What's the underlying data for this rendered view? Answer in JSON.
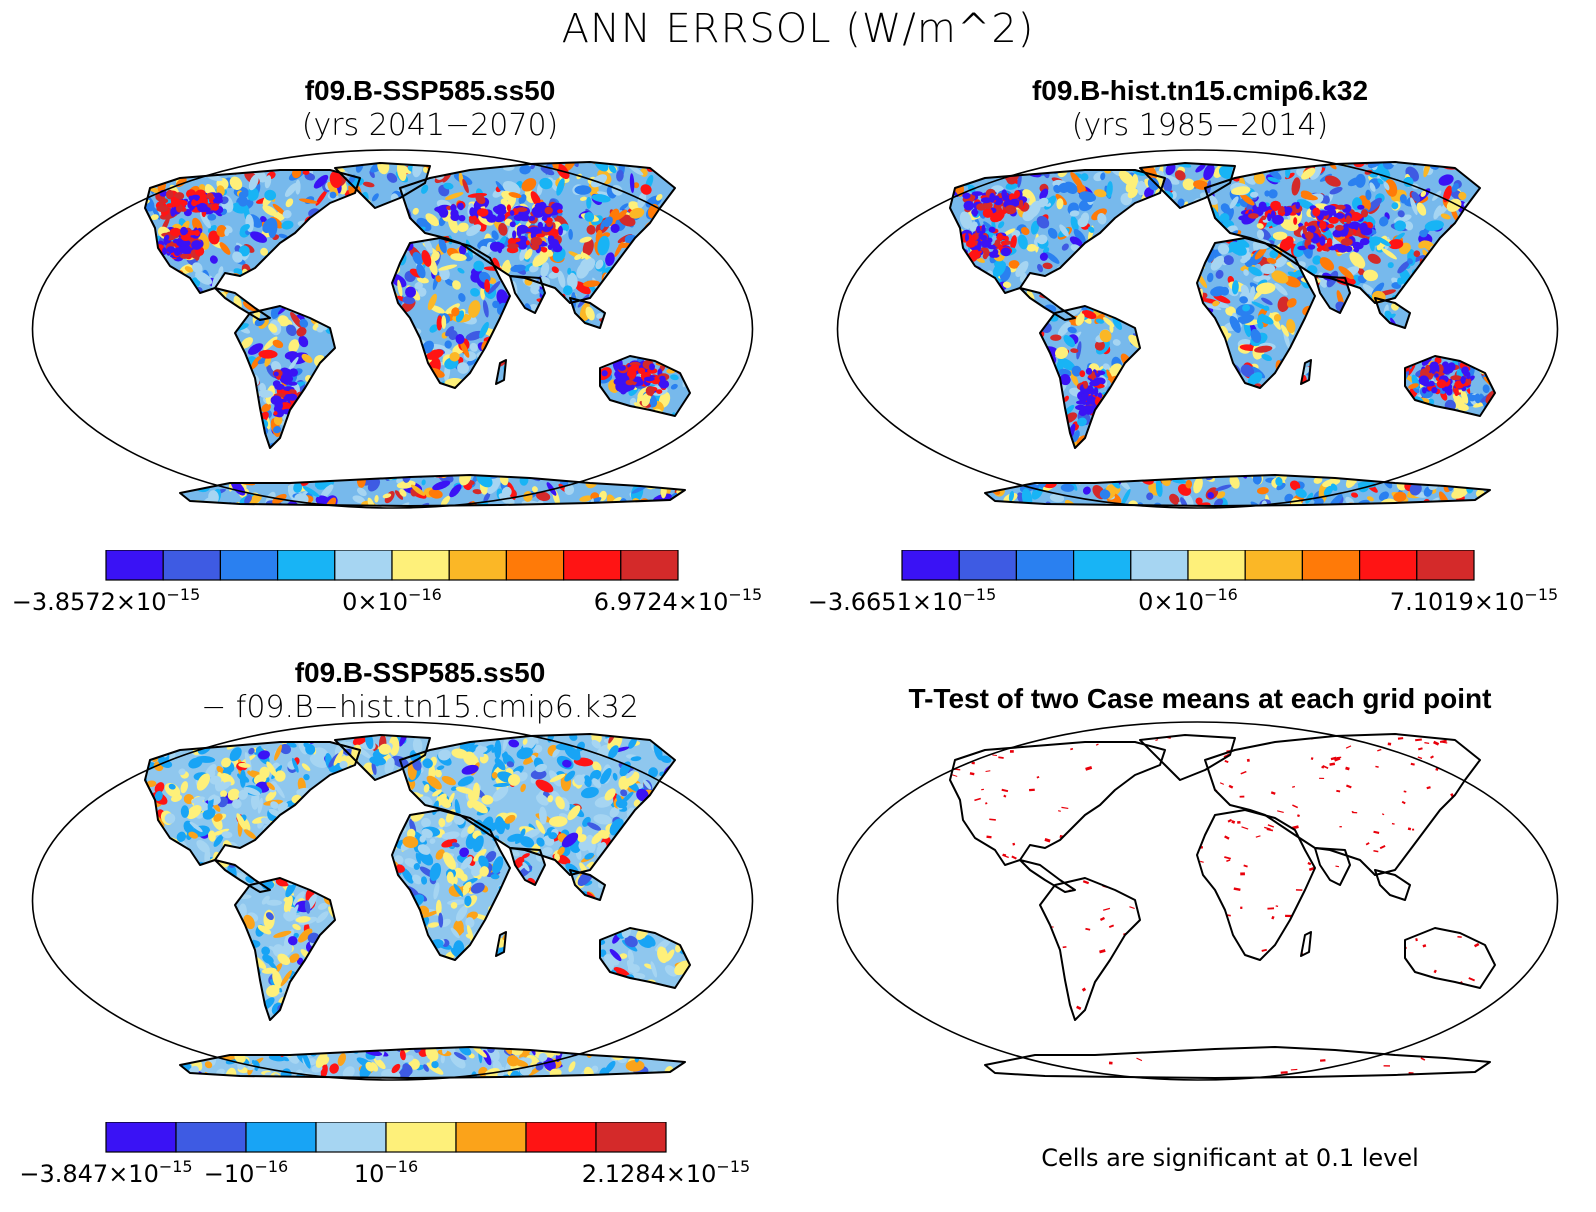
{
  "title": "ANN ERRSOL (W/m^2)",
  "colors": {
    "cb10": [
      "#3a12f5",
      "#3e5be3",
      "#2a80f0",
      "#18b4f5",
      "#a6d5f2",
      "#fef07a",
      "#fbb726",
      "#ff7a08",
      "#ff1414",
      "#d42a2a"
    ],
    "cb8": [
      "#3a12f5",
      "#3e5be3",
      "#18a4f5",
      "#a6d5f2",
      "#fef07a",
      "#fba31a",
      "#ff1414",
      "#d42a2a"
    ],
    "significant": "#e8000b"
  },
  "panels": [
    {
      "title": "f09.B-SSP585.ss50",
      "subtitle": "(yrs 2041−2070)",
      "colorbar": {
        "labels": [
          {
            "mantissa": "−3.8572×10",
            "exp": "−15"
          },
          {
            "mantissa": "0×10",
            "exp": "−16"
          },
          {
            "mantissa": "6.9724×10",
            "exp": "−15"
          }
        ]
      }
    },
    {
      "title": "f09.B-hist.tn15.cmip6.k32",
      "subtitle": "(yrs 1985−2014)",
      "colorbar": {
        "labels": [
          {
            "mantissa": "−3.6651×10",
            "exp": "−15"
          },
          {
            "mantissa": "0×10",
            "exp": "−16"
          },
          {
            "mantissa": "7.1019×10",
            "exp": "−15"
          }
        ]
      }
    },
    {
      "title": "f09.B-SSP585.ss50",
      "subtitle": "− f09.B−hist.tn15.cmip6.k32",
      "colorbar": {
        "labels": [
          {
            "mantissa": "−3.847×10",
            "exp": "−15"
          },
          {
            "mantissa": "−10",
            "exp": "−16"
          },
          {
            "mantissa": "10",
            "exp": "−16"
          },
          {
            "mantissa": "2.1284×10",
            "exp": "−15"
          }
        ]
      }
    },
    {
      "title": "T-Test of two Case means at each grid point",
      "note": "Cells are significant at 0.1 level"
    }
  ]
}
